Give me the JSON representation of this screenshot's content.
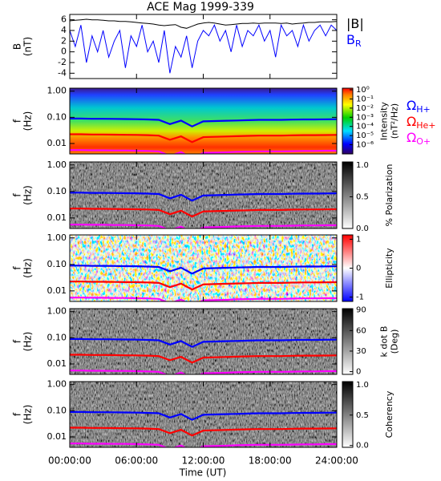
{
  "title": "ACE Mag 1999-339",
  "time_axis": {
    "label": "Time (UT)",
    "xlim": [
      0,
      24
    ],
    "xticks": [
      {
        "value": 0,
        "label": "00:00:00"
      },
      {
        "value": 6,
        "label": "06:00:00"
      },
      {
        "value": 12,
        "label": "12:00:00"
      },
      {
        "value": 18,
        "label": "18:00:00"
      },
      {
        "value": 24,
        "label": "24:00:00"
      }
    ]
  },
  "chart_data": [
    {
      "type": "line",
      "ylabel": [
        "B",
        "(nT)"
      ],
      "ylim": [
        -5,
        7
      ],
      "yticks": [
        -4,
        -2,
        0,
        2,
        4,
        6
      ],
      "x": [
        0,
        0.5,
        1,
        1.5,
        2,
        2.5,
        3,
        3.5,
        4,
        4.5,
        5,
        5.5,
        6,
        6.5,
        7,
        7.5,
        8,
        8.5,
        9,
        9.5,
        10,
        10.5,
        11,
        11.5,
        12,
        12.5,
        13,
        13.5,
        14,
        14.5,
        15,
        15.5,
        16,
        16.5,
        17,
        17.5,
        18,
        18.5,
        19,
        19.5,
        20,
        20.5,
        21,
        21.5,
        22,
        22.5,
        23,
        23.5,
        24
      ],
      "series": [
        {
          "name": "|B|",
          "color": "#000000",
          "values": [
            5.8,
            5.9,
            6.0,
            6.1,
            6.0,
            6.0,
            5.9,
            5.8,
            5.8,
            5.7,
            5.7,
            5.6,
            5.5,
            5.4,
            5.3,
            5.2,
            5.0,
            4.9,
            5.0,
            5.1,
            4.6,
            4.4,
            4.8,
            5.2,
            5.4,
            5.5,
            5.4,
            5.2,
            5.0,
            5.1,
            5.2,
            5.3,
            5.3,
            5.4,
            5.3,
            5.4,
            5.4,
            5.4,
            5.3,
            5.4,
            5.2,
            5.3,
            5.4,
            5.5,
            5.5,
            5.6,
            5.6,
            5.6,
            5.7
          ]
        },
        {
          "name": "B",
          "subscript": "R",
          "color": "#0000ff",
          "values": [
            4,
            1,
            5,
            -2,
            3,
            0,
            4,
            -1,
            2,
            4,
            -3,
            3,
            1,
            5,
            0,
            2,
            -2,
            4,
            -4,
            1,
            -1,
            3,
            -3,
            2,
            4,
            3,
            5,
            2,
            4,
            0,
            5,
            1,
            4,
            3,
            5,
            2,
            4,
            -1,
            5,
            3,
            4,
            1,
            5,
            2,
            4,
            5,
            3,
            5,
            4
          ]
        }
      ]
    },
    {
      "type": "spectrogram",
      "ylabel": [
        "f",
        "(Hz)"
      ],
      "log_y": true,
      "ylim": [
        0.004,
        1.3
      ],
      "yticks": [
        {
          "value": 1,
          "label": "1.00"
        },
        {
          "value": 0.1,
          "label": "0.10"
        },
        {
          "value": 0.01,
          "label": "0.01"
        }
      ],
      "colorbar": {
        "label": [
          "Intensity",
          "(nT²/Hz)"
        ],
        "colormap": "rainbow",
        "log": true,
        "clim": [
          1e-07,
          1.5
        ],
        "ticks": [
          {
            "value": 1,
            "label": "10⁰"
          },
          {
            "value": 0.1,
            "label": "10⁻¹"
          },
          {
            "value": 0.01,
            "label": "10⁻²"
          },
          {
            "value": 0.001,
            "label": "10⁻³"
          },
          {
            "value": 0.0001,
            "label": "10⁻⁴"
          },
          {
            "value": 1e-05,
            "label": "10⁻⁵"
          },
          {
            "value": 1e-06,
            "label": "10⁻⁶"
          }
        ]
      },
      "x": [
        0,
        1,
        2,
        3,
        4,
        5,
        6,
        7,
        8,
        9,
        10,
        11,
        12,
        13,
        14,
        15,
        16,
        17,
        18,
        19,
        20,
        21,
        22,
        23,
        24
      ],
      "series": [
        {
          "name": "Ω",
          "subscript": "H+",
          "color": "#0000ff",
          "values": [
            0.09,
            0.09,
            0.088,
            0.088,
            0.087,
            0.086,
            0.085,
            0.083,
            0.08,
            0.055,
            0.075,
            0.045,
            0.07,
            0.072,
            0.074,
            0.076,
            0.078,
            0.08,
            0.08,
            0.08,
            0.082,
            0.083,
            0.083,
            0.084,
            0.085
          ]
        },
        {
          "name": "Ω",
          "subscript": "He+",
          "color": "#ff0000",
          "values": [
            0.0225,
            0.0225,
            0.022,
            0.022,
            0.0218,
            0.0215,
            0.0213,
            0.0208,
            0.02,
            0.0138,
            0.0188,
            0.0113,
            0.0175,
            0.018,
            0.0185,
            0.019,
            0.0195,
            0.02,
            0.02,
            0.02,
            0.0205,
            0.0208,
            0.0208,
            0.021,
            0.0213
          ]
        },
        {
          "name": "Ω",
          "subscript": "O+",
          "color": "#ff00ff",
          "values": [
            0.0056,
            0.0056,
            0.0055,
            0.0055,
            0.0054,
            0.0054,
            0.0053,
            0.0052,
            0.005,
            0.0034,
            0.0047,
            0.0028,
            0.0044,
            0.0045,
            0.0046,
            0.0048,
            0.0049,
            0.005,
            0.005,
            0.005,
            0.0051,
            0.0052,
            0.0052,
            0.0053,
            0.0053
          ]
        }
      ]
    },
    {
      "type": "spectrogram",
      "ylabel": [
        "f",
        "(Hz)"
      ],
      "log_y": true,
      "ylim": [
        0.004,
        1.3
      ],
      "yticks": [
        {
          "value": 1,
          "label": "1.00"
        },
        {
          "value": 0.1,
          "label": "0.10"
        },
        {
          "value": 0.01,
          "label": "0.01"
        }
      ],
      "colorbar": {
        "label": [
          "% Polarization"
        ],
        "colormap": "gray",
        "clim": [
          0,
          1.05
        ],
        "ticks": [
          {
            "value": 0,
            "label": "0.0"
          },
          {
            "value": 0.5,
            "label": "0.5"
          },
          {
            "value": 1,
            "label": "1.0"
          }
        ]
      },
      "x": [
        0,
        1,
        2,
        3,
        4,
        5,
        6,
        7,
        8,
        9,
        10,
        11,
        12,
        13,
        14,
        15,
        16,
        17,
        18,
        19,
        20,
        21,
        22,
        23,
        24
      ],
      "series": [
        {
          "color": "#0000ff",
          "values": [
            0.09,
            0.09,
            0.088,
            0.088,
            0.087,
            0.086,
            0.085,
            0.083,
            0.08,
            0.055,
            0.075,
            0.045,
            0.07,
            0.072,
            0.074,
            0.076,
            0.078,
            0.08,
            0.08,
            0.08,
            0.082,
            0.083,
            0.083,
            0.084,
            0.085
          ]
        },
        {
          "color": "#ff0000",
          "values": [
            0.0225,
            0.0225,
            0.022,
            0.022,
            0.0218,
            0.0215,
            0.0213,
            0.0208,
            0.02,
            0.0138,
            0.0188,
            0.0113,
            0.0175,
            0.018,
            0.0185,
            0.019,
            0.0195,
            0.02,
            0.02,
            0.02,
            0.0205,
            0.0208,
            0.0208,
            0.021,
            0.0213
          ]
        },
        {
          "color": "#ff00ff",
          "values": [
            0.0056,
            0.0056,
            0.0055,
            0.0055,
            0.0054,
            0.0054,
            0.0053,
            0.0052,
            0.005,
            0.0034,
            0.0047,
            0.0028,
            0.0044,
            0.0045,
            0.0046,
            0.0048,
            0.0049,
            0.005,
            0.005,
            0.005,
            0.0051,
            0.0052,
            0.0052,
            0.0053,
            0.0053
          ]
        }
      ]
    },
    {
      "type": "spectrogram",
      "ylabel": [
        "f",
        "(Hz)"
      ],
      "log_y": true,
      "ylim": [
        0.004,
        1.3
      ],
      "yticks": [
        {
          "value": 1,
          "label": "1.00"
        },
        {
          "value": 0.1,
          "label": "0.10"
        },
        {
          "value": 0.01,
          "label": "0.01"
        }
      ],
      "colorbar": {
        "label": [
          "Ellipticity"
        ],
        "colormap": "bwr",
        "clim": [
          -1.15,
          1.15
        ],
        "ticks": [
          -1,
          0,
          1
        ]
      },
      "x": [
        0,
        1,
        2,
        3,
        4,
        5,
        6,
        7,
        8,
        9,
        10,
        11,
        12,
        13,
        14,
        15,
        16,
        17,
        18,
        19,
        20,
        21,
        22,
        23,
        24
      ],
      "series": [
        {
          "color": "#0000ff",
          "values": [
            0.09,
            0.09,
            0.088,
            0.088,
            0.087,
            0.086,
            0.085,
            0.083,
            0.08,
            0.055,
            0.075,
            0.045,
            0.07,
            0.072,
            0.074,
            0.076,
            0.078,
            0.08,
            0.08,
            0.08,
            0.082,
            0.083,
            0.083,
            0.084,
            0.085
          ]
        },
        {
          "color": "#ff0000",
          "values": [
            0.0225,
            0.0225,
            0.022,
            0.022,
            0.0218,
            0.0215,
            0.0213,
            0.0208,
            0.02,
            0.0138,
            0.0188,
            0.0113,
            0.0175,
            0.018,
            0.0185,
            0.019,
            0.0195,
            0.02,
            0.02,
            0.02,
            0.0205,
            0.0208,
            0.0208,
            0.021,
            0.0213
          ]
        },
        {
          "color": "#ff00ff",
          "values": [
            0.0056,
            0.0056,
            0.0055,
            0.0055,
            0.0054,
            0.0054,
            0.0053,
            0.0052,
            0.005,
            0.0034,
            0.0047,
            0.0028,
            0.0044,
            0.0045,
            0.0046,
            0.0048,
            0.0049,
            0.005,
            0.005,
            0.005,
            0.0051,
            0.0052,
            0.0052,
            0.0053,
            0.0053
          ]
        }
      ]
    },
    {
      "type": "spectrogram",
      "ylabel": [
        "f",
        "(Hz)"
      ],
      "log_y": true,
      "ylim": [
        0.004,
        1.3
      ],
      "yticks": [
        {
          "value": 1,
          "label": "1.00"
        },
        {
          "value": 0.1,
          "label": "0.10"
        },
        {
          "value": 0.01,
          "label": "0.01"
        }
      ],
      "colorbar": {
        "label": [
          "k dot B",
          "(Deg)"
        ],
        "colormap": "gray",
        "clim": [
          -4,
          92
        ],
        "ticks": [
          0,
          30,
          60,
          90
        ]
      },
      "x": [
        0,
        1,
        2,
        3,
        4,
        5,
        6,
        7,
        8,
        9,
        10,
        11,
        12,
        13,
        14,
        15,
        16,
        17,
        18,
        19,
        20,
        21,
        22,
        23,
        24
      ],
      "series": [
        {
          "color": "#0000ff",
          "values": [
            0.09,
            0.09,
            0.088,
            0.088,
            0.087,
            0.086,
            0.085,
            0.083,
            0.08,
            0.055,
            0.075,
            0.045,
            0.07,
            0.072,
            0.074,
            0.076,
            0.078,
            0.08,
            0.08,
            0.08,
            0.082,
            0.083,
            0.083,
            0.084,
            0.085
          ]
        },
        {
          "color": "#ff0000",
          "values": [
            0.0225,
            0.0225,
            0.022,
            0.022,
            0.0218,
            0.0215,
            0.0213,
            0.0208,
            0.02,
            0.0138,
            0.0188,
            0.0113,
            0.0175,
            0.018,
            0.0185,
            0.019,
            0.0195,
            0.02,
            0.02,
            0.02,
            0.0205,
            0.0208,
            0.0208,
            0.021,
            0.0213
          ]
        },
        {
          "color": "#ff00ff",
          "values": [
            0.0056,
            0.0056,
            0.0055,
            0.0055,
            0.0054,
            0.0054,
            0.0053,
            0.0052,
            0.005,
            0.0034,
            0.0047,
            0.0028,
            0.0044,
            0.0045,
            0.0046,
            0.0048,
            0.0049,
            0.005,
            0.005,
            0.005,
            0.0051,
            0.0052,
            0.0052,
            0.0053,
            0.0053
          ]
        }
      ]
    },
    {
      "type": "spectrogram",
      "ylabel": [
        "f",
        "(Hz)"
      ],
      "log_y": true,
      "ylim": [
        0.004,
        1.3
      ],
      "yticks": [
        {
          "value": 1,
          "label": "1.00"
        },
        {
          "value": 0.1,
          "label": "0.10"
        },
        {
          "value": 0.01,
          "label": "0.01"
        }
      ],
      "colorbar": {
        "label": [
          "Coherency"
        ],
        "colormap": "gray",
        "clim": [
          -0.03,
          1.05
        ],
        "ticks": [
          {
            "value": 0,
            "label": "0.0"
          },
          {
            "value": 0.5,
            "label": "0.5"
          },
          {
            "value": 1,
            "label": "1.0"
          }
        ]
      },
      "x": [
        0,
        1,
        2,
        3,
        4,
        5,
        6,
        7,
        8,
        9,
        10,
        11,
        12,
        13,
        14,
        15,
        16,
        17,
        18,
        19,
        20,
        21,
        22,
        23,
        24
      ],
      "series": [
        {
          "color": "#0000ff",
          "values": [
            0.09,
            0.09,
            0.088,
            0.088,
            0.087,
            0.086,
            0.085,
            0.083,
            0.08,
            0.055,
            0.075,
            0.045,
            0.07,
            0.072,
            0.074,
            0.076,
            0.078,
            0.08,
            0.08,
            0.08,
            0.082,
            0.083,
            0.083,
            0.084,
            0.085
          ]
        },
        {
          "color": "#ff0000",
          "values": [
            0.0225,
            0.0225,
            0.022,
            0.022,
            0.0218,
            0.0215,
            0.0213,
            0.0208,
            0.02,
            0.0138,
            0.0188,
            0.0113,
            0.0175,
            0.018,
            0.0185,
            0.019,
            0.0195,
            0.02,
            0.02,
            0.02,
            0.0205,
            0.0208,
            0.0208,
            0.021,
            0.0213
          ]
        },
        {
          "color": "#ff00ff",
          "values": [
            0.0056,
            0.0056,
            0.0055,
            0.0055,
            0.0054,
            0.0054,
            0.0053,
            0.0052,
            0.005,
            0.0034,
            0.0047,
            0.0028,
            0.0044,
            0.0045,
            0.0046,
            0.0048,
            0.0049,
            0.005,
            0.005,
            0.005,
            0.0051,
            0.0052,
            0.0052,
            0.0053,
            0.0053
          ]
        }
      ]
    }
  ]
}
